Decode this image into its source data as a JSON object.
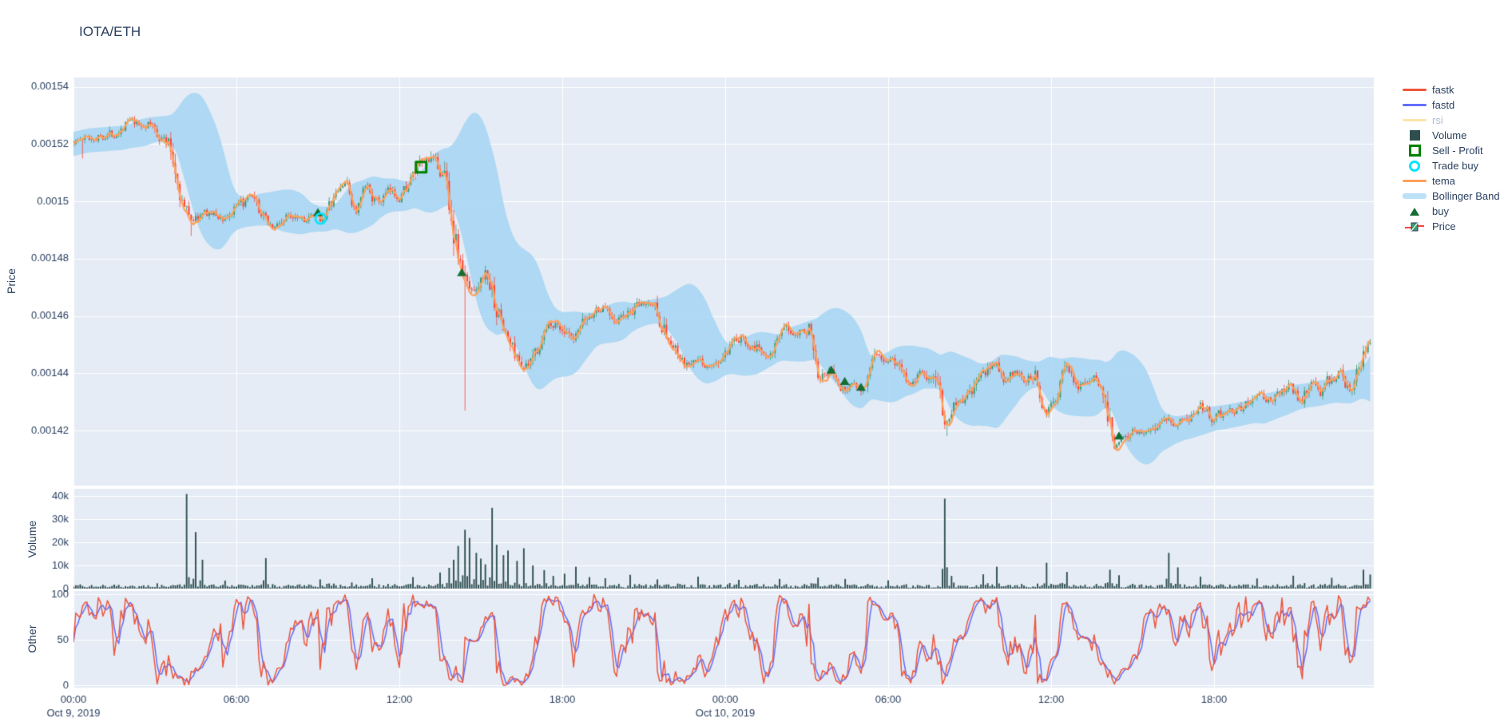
{
  "title": "IOTA/ETH",
  "colors": {
    "background": "#ffffff",
    "panel_bg": "#E5ECF6",
    "grid": "#ffffff",
    "text": "#2a3f5f",
    "muted_text": "#b1bdd1",
    "fastk": "#EF553B",
    "fastd": "#636EFA",
    "rsi": "rgba(254,203,82,0.5)",
    "volume": "#2F4F4F",
    "sell_profit": "#008000",
    "trade_buy": "#00e5ff",
    "tema": "#FFA15A",
    "bollinger_fill": "rgba(164,213,242,0.85)",
    "bollinger_legend": "#BCE0F5",
    "buy": "#156d33",
    "candle_up": "#3D9970",
    "candle_down": "#FF4136"
  },
  "legend": {
    "items": [
      {
        "label": "fastk",
        "muted": false
      },
      {
        "label": "fastd",
        "muted": false
      },
      {
        "label": "rsi",
        "muted": true
      },
      {
        "label": "Volume",
        "muted": false
      },
      {
        "label": "Sell - Profit",
        "muted": false
      },
      {
        "label": "Trade buy",
        "muted": false
      },
      {
        "label": "tema",
        "muted": false
      },
      {
        "label": "Bollinger Band",
        "muted": false
      },
      {
        "label": "buy",
        "muted": false
      },
      {
        "label": "Price",
        "muted": false
      }
    ]
  },
  "axes": {
    "x": {
      "ticks": [
        {
          "t": 0,
          "label": "00:00",
          "date": "Oct 9, 2019"
        },
        {
          "t": 6,
          "label": "06:00"
        },
        {
          "t": 12,
          "label": "12:00"
        },
        {
          "t": 18,
          "label": "18:00"
        },
        {
          "t": 24,
          "label": "00:00",
          "date": "Oct 10, 2019"
        },
        {
          "t": 30,
          "label": "06:00"
        },
        {
          "t": 36,
          "label": "12:00"
        },
        {
          "t": 42,
          "label": "18:00"
        }
      ]
    },
    "price": {
      "title": "Price",
      "ticks": [
        {
          "v": 0.00154,
          "label": "0.00154"
        },
        {
          "v": 0.00152,
          "label": "0.00152"
        },
        {
          "v": 0.0015,
          "label": "0.0015"
        },
        {
          "v": 0.00148,
          "label": "0.00148"
        },
        {
          "v": 0.00146,
          "label": "0.00146"
        },
        {
          "v": 0.00144,
          "label": "0.00144"
        },
        {
          "v": 0.00142,
          "label": "0.00142"
        }
      ]
    },
    "volume": {
      "title": "Volume",
      "ticks": [
        {
          "v": 40000,
          "label": "40k"
        },
        {
          "v": 30000,
          "label": "30k"
        },
        {
          "v": 20000,
          "label": "20k"
        },
        {
          "v": 10000,
          "label": "10k"
        },
        {
          "v": 0,
          "label": "0"
        }
      ]
    },
    "other": {
      "title": "Other",
      "ticks": [
        {
          "v": 100,
          "label": "100"
        },
        {
          "v": 50,
          "label": "50"
        },
        {
          "v": 0,
          "label": "0"
        }
      ]
    }
  },
  "chart_data": {
    "type": "multi-panel-financial",
    "pair": "IOTA/ETH",
    "timeframe_minutes": 5,
    "x_unit": "hours since Oct 9, 2019 00:00",
    "x_range": [
      0,
      47.83
    ],
    "price_range": [
      0.0014,
      0.001544
    ],
    "volume_range": [
      0,
      43500
    ],
    "other_range": [
      0,
      100
    ],
    "series": [
      {
        "name": "Price",
        "type": "candlestick",
        "panel": "price",
        "keyframes": [
          [
            0,
            0.001521
          ],
          [
            0.5,
            0.001522
          ],
          [
            1,
            0.001523
          ],
          [
            1.5,
            0.001524
          ],
          [
            2,
            0.001528
          ],
          [
            2.4,
            0.001526
          ],
          [
            2.8,
            0.001527
          ],
          [
            3.2,
            0.001523
          ],
          [
            3.5,
            0.00152
          ],
          [
            3.8,
            0.001509
          ],
          [
            4.1,
            0.001497
          ],
          [
            4.4,
            0.001494
          ],
          [
            5,
            0.001496
          ],
          [
            5.5,
            0.001494
          ],
          [
            6,
            0.001497
          ],
          [
            6.5,
            0.001501
          ],
          [
            7,
            0.001494
          ],
          [
            7.4,
            0.001491
          ],
          [
            7.8,
            0.001494
          ],
          [
            8.2,
            0.001496
          ],
          [
            8.6,
            0.001494
          ],
          [
            9.1,
            0.001494
          ],
          [
            9.5,
            0.001499
          ],
          [
            10,
            0.001507
          ],
          [
            10.4,
            0.001496
          ],
          [
            10.8,
            0.001505
          ],
          [
            11.2,
            0.001499
          ],
          [
            11.6,
            0.001503
          ],
          [
            12,
            0.001502
          ],
          [
            12.4,
            0.001507
          ],
          [
            12.8,
            0.001512
          ],
          [
            13.1,
            0.001515
          ],
          [
            13.4,
            0.001512
          ],
          [
            13.7,
            0.001509
          ],
          [
            14,
            0.00149
          ],
          [
            14.3,
            0.001476
          ],
          [
            14.6,
            0.001468
          ],
          [
            14.9,
            0.001472
          ],
          [
            15.2,
            0.001475
          ],
          [
            15.6,
            0.001462
          ],
          [
            16,
            0.001452
          ],
          [
            16.4,
            0.001444
          ],
          [
            16.8,
            0.001442
          ],
          [
            17.2,
            0.001452
          ],
          [
            17.6,
            0.001458
          ],
          [
            18,
            0.001456
          ],
          [
            18.4,
            0.00145
          ],
          [
            18.8,
            0.001457
          ],
          [
            19.2,
            0.001462
          ],
          [
            19.6,
            0.001463
          ],
          [
            20,
            0.001459
          ],
          [
            20.5,
            0.001461
          ],
          [
            21,
            0.001464
          ],
          [
            21.4,
            0.001464
          ],
          [
            22,
            0.00145
          ],
          [
            22.5,
            0.001442
          ],
          [
            23,
            0.001444
          ],
          [
            23.5,
            0.001442
          ],
          [
            24,
            0.001446
          ],
          [
            24.6,
            0.001452
          ],
          [
            25,
            0.00145
          ],
          [
            25.5,
            0.001447
          ],
          [
            26.2,
            0.001454
          ],
          [
            26.8,
            0.001456
          ],
          [
            27.2,
            0.001455
          ],
          [
            27.4,
            0.001442
          ],
          [
            27.9,
            0.001441
          ],
          [
            28.3,
            0.001434
          ],
          [
            28.7,
            0.001437
          ],
          [
            29,
            0.001435
          ],
          [
            29.6,
            0.001445
          ],
          [
            30.2,
            0.001445
          ],
          [
            30.8,
            0.001437
          ],
          [
            31.2,
            0.001441
          ],
          [
            31.6,
            0.001437
          ],
          [
            31.9,
            0.001436
          ],
          [
            32.1,
            0.001421
          ],
          [
            32.35,
            0.001428
          ],
          [
            33,
            0.001432
          ],
          [
            33.4,
            0.001438
          ],
          [
            34,
            0.001444
          ],
          [
            34.3,
            0.001436
          ],
          [
            34.6,
            0.00144
          ],
          [
            35,
            0.001438
          ],
          [
            35.4,
            0.00144
          ],
          [
            35.8,
            0.001428
          ],
          [
            36.2,
            0.001432
          ],
          [
            36.6,
            0.001442
          ],
          [
            37,
            0.001436
          ],
          [
            37.4,
            0.001438
          ],
          [
            37.8,
            0.001438
          ],
          [
            38.1,
            0.001425
          ],
          [
            38.35,
            0.001416
          ],
          [
            38.7,
            0.001419
          ],
          [
            39.2,
            0.00142
          ],
          [
            39.7,
            0.001421
          ],
          [
            40.2,
            0.001426
          ],
          [
            40.6,
            0.001422
          ],
          [
            41,
            0.001424
          ],
          [
            41.5,
            0.001429
          ],
          [
            42,
            0.001424
          ],
          [
            42.5,
            0.001427
          ],
          [
            43,
            0.001428
          ],
          [
            43.5,
            0.001432
          ],
          [
            44,
            0.001431
          ],
          [
            44.4,
            0.001433
          ],
          [
            44.8,
            0.001436
          ],
          [
            45.2,
            0.00143
          ],
          [
            45.6,
            0.001438
          ],
          [
            45.9,
            0.001432
          ],
          [
            46.2,
            0.001437
          ],
          [
            46.6,
            0.00144
          ],
          [
            46.9,
            0.001435
          ],
          [
            47.1,
            0.001433
          ],
          [
            47.4,
            0.001443
          ],
          [
            47.7,
            0.001452
          ],
          [
            47.83,
            0.001449
          ]
        ],
        "wick_events": [
          [
            0.35,
            "l",
            0.001515
          ],
          [
            2.0,
            "h",
            0.001529
          ],
          [
            4.35,
            "l",
            0.001488
          ],
          [
            13.15,
            "h",
            0.0015175
          ],
          [
            14.45,
            "l",
            0.001427
          ],
          [
            32.15,
            "l",
            0.001418
          ],
          [
            38.4,
            "l",
            0.001413
          ]
        ]
      },
      {
        "name": "tema",
        "type": "line",
        "panel": "price",
        "derived": "TEMA(7) of close"
      },
      {
        "name": "Bollinger Band",
        "type": "area",
        "panel": "price",
        "derived": "SMA(24) of close ± 2 sigma"
      },
      {
        "name": "buy",
        "type": "scatter",
        "panel": "price",
        "symbol": "triangle-up",
        "points": [
          [
            9.0,
            0.001496
          ],
          [
            14.3,
            0.001475
          ],
          [
            27.9,
            0.001441
          ],
          [
            28.4,
            0.001437
          ],
          [
            29.0,
            0.001435
          ],
          [
            38.5,
            0.001418
          ]
        ]
      },
      {
        "name": "Trade buy",
        "type": "scatter",
        "panel": "price",
        "symbol": "circle-open",
        "points": [
          [
            9.1,
            0.001494
          ]
        ]
      },
      {
        "name": "Sell - Profit",
        "type": "scatter",
        "panel": "price",
        "symbol": "square-open",
        "points": [
          [
            12.8,
            0.001512
          ]
        ]
      },
      {
        "name": "Volume",
        "type": "bar",
        "panel": "volume",
        "base_noise": [
          300,
          1600
        ],
        "spikes": [
          [
            4.17,
            41000
          ],
          [
            4.5,
            24500
          ],
          [
            4.75,
            12500
          ],
          [
            5.6,
            3500
          ],
          [
            7.1,
            13200
          ],
          [
            9.1,
            4000
          ],
          [
            11.0,
            4500
          ],
          [
            12.5,
            5000
          ],
          [
            13.5,
            7000
          ],
          [
            13.8,
            9000
          ],
          [
            14.0,
            12500
          ],
          [
            14.2,
            18500
          ],
          [
            14.4,
            25500
          ],
          [
            14.6,
            22000
          ],
          [
            14.8,
            15500
          ],
          [
            15.0,
            13000
          ],
          [
            15.2,
            10500
          ],
          [
            15.4,
            35000
          ],
          [
            15.6,
            19000
          ],
          [
            15.8,
            14500
          ],
          [
            16.0,
            16500
          ],
          [
            16.3,
            12000
          ],
          [
            16.6,
            17500
          ],
          [
            16.9,
            10000
          ],
          [
            17.3,
            8000
          ],
          [
            17.7,
            5500
          ],
          [
            18.1,
            6500
          ],
          [
            18.5,
            9500
          ],
          [
            19.0,
            5000
          ],
          [
            19.6,
            4500
          ],
          [
            20.5,
            6000
          ],
          [
            21.5,
            4000
          ],
          [
            23.0,
            5200
          ],
          [
            24.5,
            3800
          ],
          [
            26.0,
            4200
          ],
          [
            27.4,
            4800
          ],
          [
            28.4,
            4200
          ],
          [
            30.0,
            3600
          ],
          [
            32.05,
            39000
          ],
          [
            32.3,
            5500
          ],
          [
            33.5,
            6200
          ],
          [
            34.0,
            9500
          ],
          [
            35.8,
            11200
          ],
          [
            36.6,
            7200
          ],
          [
            38.2,
            8200
          ],
          [
            38.5,
            5800
          ],
          [
            40.3,
            15500
          ],
          [
            40.7,
            9200
          ],
          [
            41.5,
            5200
          ],
          [
            43.6,
            4400
          ],
          [
            44.9,
            5600
          ],
          [
            46.3,
            4700
          ],
          [
            47.5,
            8200
          ],
          [
            47.8,
            6100
          ]
        ]
      },
      {
        "name": "fastk",
        "type": "line",
        "panel": "other",
        "derived": "stochastic %K(14)"
      },
      {
        "name": "fastd",
        "type": "line",
        "panel": "other",
        "derived": "SMA(3) of fastk"
      },
      {
        "name": "rsi",
        "type": "line",
        "panel": "other",
        "hidden": true
      }
    ]
  }
}
